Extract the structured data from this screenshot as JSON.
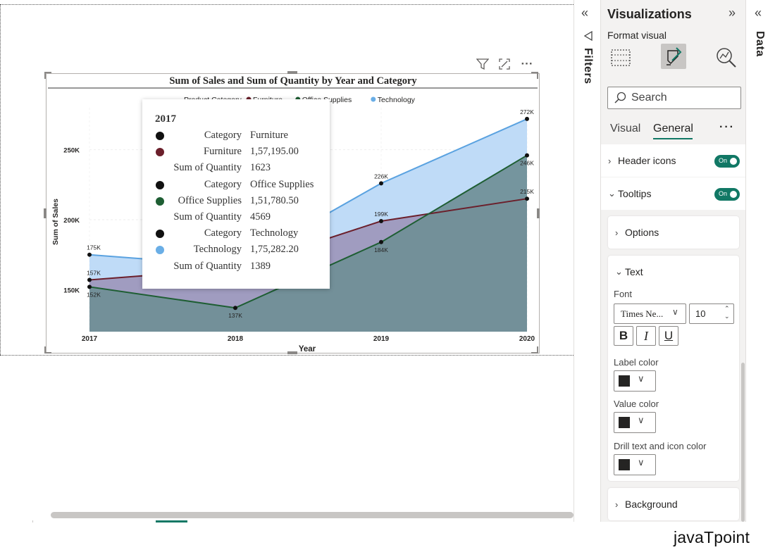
{
  "chart_data": {
    "type": "area",
    "title": "Sum of Sales and Sum of Quantity by Year and Category",
    "xlabel": "Year",
    "ylabel": "Sum of Sales",
    "legend_title": "Product Category",
    "legend_position": "top",
    "categories": [
      "2017",
      "2018",
      "2019",
      "2020"
    ],
    "y_ticks": [
      "150K",
      "200K",
      "250K"
    ],
    "y_tick_values": [
      150000,
      200000,
      250000
    ],
    "ylim": [
      120000,
      280000
    ],
    "series": [
      {
        "name": "Technology",
        "color": "#bfdbf7",
        "line": "#5aa2e0",
        "values": [
          175000,
          167000,
          226000,
          272000
        ],
        "labels": [
          "175K",
          "",
          "226K",
          "272K"
        ]
      },
      {
        "name": "Furniture",
        "color": "#9d97bb",
        "line": "#6b1f2b",
        "values": [
          157000,
          165000,
          199000,
          215000
        ],
        "labels": [
          "157K",
          "",
          "199K",
          "215K"
        ]
      },
      {
        "name": "Office Supplies",
        "color": "#6f8f96",
        "line": "#1e5e33",
        "values": [
          152000,
          137000,
          184000,
          246000
        ],
        "labels": [
          "152K",
          "137K",
          "184K",
          "246K"
        ]
      }
    ],
    "grid": true
  },
  "tooltip": {
    "header": "2017",
    "rows": [
      {
        "label": "Category",
        "value": "Furniture",
        "dot": "#111111"
      },
      {
        "label": "Furniture",
        "value": "1,57,195.00",
        "dot": "#6b1f2b"
      },
      {
        "label": "Sum of Quantity",
        "value": "1623",
        "dot": ""
      },
      {
        "label": "Category",
        "value": "Office Supplies",
        "dot": "#111111"
      },
      {
        "label": "Office Supplies",
        "value": "1,51,780.50",
        "dot": "#1e5e33"
      },
      {
        "label": "Sum of Quantity",
        "value": "4569",
        "dot": ""
      },
      {
        "label": "Category",
        "value": "Technology",
        "dot": "#111111"
      },
      {
        "label": "Technology",
        "value": "1,75,282.20",
        "dot": "#6aaee6"
      },
      {
        "label": "Sum of Quantity",
        "value": "1389",
        "dot": ""
      }
    ]
  },
  "visual_header": {
    "filter_icon": "funnel-icon",
    "focus_icon": "focus-mode-icon",
    "more": "···"
  },
  "filters_pane": {
    "title": "Filters"
  },
  "data_pane": {
    "title": "Data"
  },
  "viz_pane": {
    "title": "Visualizations",
    "subtitle": "Format visual",
    "search_placeholder": "Search",
    "tabs": [
      "Visual",
      "General"
    ],
    "more": "···",
    "header_icons_label": "Header icons",
    "tooltips_label": "Tooltips",
    "toggle_on": "On",
    "options_label": "Options",
    "text_label": "Text",
    "font_label": "Font",
    "font_value": "Times Ne...",
    "font_size": "10",
    "bold": "B",
    "italic": "I",
    "underline": "U",
    "label_color": "Label color",
    "value_color": "Value color",
    "drill_color": "Drill text and icon color",
    "background_label": "Background",
    "accent": "#117865"
  },
  "brand": "javaTpoint"
}
